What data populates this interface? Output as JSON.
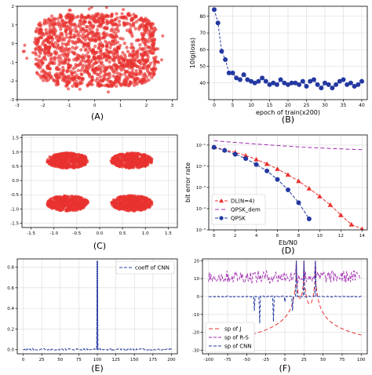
{
  "colors": {
    "red": "#e8322f",
    "blue": "#2338a0",
    "purple": "#a028b0",
    "grid": "#d9d9d9",
    "axis": "#000000"
  },
  "chart_data": [
    {
      "id": "A",
      "type": "scatter",
      "panel_label": "(A)",
      "xlim": [
        -3,
        3.2
      ],
      "ylim": [
        -3,
        2
      ],
      "xticks": [
        -3,
        -2,
        -1,
        0,
        1,
        2,
        3
      ],
      "yticks": [
        -3,
        -2,
        -1,
        0,
        1,
        2
      ],
      "grid": false,
      "series": [
        {
          "color": "#e8322f",
          "cloud": {
            "x": [
              -2.3,
              2.4
            ],
            "y": [
              -2.3,
              1.6
            ]
          },
          "gaps": [
            [
              1.3,
              0.4,
              0.5,
              0.6
            ],
            [
              -0.5,
              -0.5,
              0.2,
              0.2
            ]
          ]
        }
      ]
    },
    {
      "id": "B",
      "type": "line",
      "panel_label": "(B)",
      "xlabel": "epoch of train(x200)",
      "ylabel": "10lg(loss)",
      "xlim": [
        -1.5,
        41.5
      ],
      "ylim": [
        30,
        86
      ],
      "xticks": [
        0,
        5,
        10,
        15,
        20,
        25,
        30,
        35,
        40
      ],
      "yticks": [
        40,
        50,
        60,
        70,
        80
      ],
      "grid": true,
      "series": [
        {
          "color": "#2338a0",
          "marker": "circle",
          "x": [
            0,
            1,
            2,
            3,
            4,
            5,
            6,
            7,
            8,
            9,
            10,
            11,
            12,
            13,
            14,
            15,
            16,
            17,
            18,
            19,
            20,
            21,
            22,
            23,
            24,
            25,
            26,
            27,
            28,
            29,
            30,
            31,
            32,
            33,
            34,
            35,
            36,
            37,
            38,
            39,
            40
          ],
          "y": [
            84,
            76,
            59,
            54,
            46,
            46,
            43,
            42,
            45,
            42,
            41,
            40,
            41,
            43,
            41,
            39,
            40,
            39,
            42,
            40,
            39,
            40,
            40,
            39,
            41,
            38,
            41,
            42,
            39,
            37,
            40,
            39,
            37,
            39,
            41,
            42,
            39,
            40,
            38,
            39,
            41
          ]
        }
      ]
    },
    {
      "id": "C",
      "type": "scatter",
      "panel_label": "(C)",
      "xlim": [
        -1.7,
        1.7
      ],
      "ylim": [
        -1.65,
        1.6
      ],
      "xticks": [
        -1.5,
        -1.0,
        -0.5,
        0.0,
        0.5,
        1.0,
        1.5
      ],
      "yticks": [
        -1.5,
        -1.0,
        -0.5,
        0.0,
        0.5,
        1.0,
        1.5
      ],
      "grid": true,
      "series": [
        {
          "color": "#e8322f",
          "clusters": [
            {
              "cx": -0.7,
              "cy": 0.7
            },
            {
              "cx": 0.7,
              "cy": 0.7
            },
            {
              "cx": -0.7,
              "cy": -0.8
            },
            {
              "cx": 0.7,
              "cy": -0.8
            }
          ],
          "spread": [
            0.45,
            0.27
          ]
        }
      ]
    },
    {
      "id": "D",
      "type": "line",
      "panel_label": "(D)",
      "xlabel": "Eb/N0",
      "ylabel": "bit error rate",
      "yscale": "log",
      "xlim": [
        -0.5,
        14.5
      ],
      "ylim": [
        1e-05,
        0.3
      ],
      "xticks": [
        0,
        2,
        4,
        6,
        8,
        10,
        12,
        14
      ],
      "yticks": [
        1e-05,
        0.0001,
        0.001,
        0.01,
        0.1
      ],
      "ytick_labels": [
        "10⁻⁵",
        "10⁻⁴",
        "10⁻³",
        "10⁻²",
        "10⁻¹"
      ],
      "grid": true,
      "legend": "bottom-left",
      "series": [
        {
          "name": "DL(N=4)",
          "color": "#e8322f",
          "marker": "triangle",
          "dash": "4,2",
          "x": [
            0,
            1,
            2,
            3,
            4,
            5,
            6,
            7,
            8,
            9,
            10,
            11,
            12,
            13,
            14
          ],
          "y": [
            0.08,
            0.06,
            0.045,
            0.032,
            0.021,
            0.013,
            0.0075,
            0.004,
            0.002,
            0.0009,
            0.00038,
            0.00015,
            5e-05,
            1.8e-05,
            1.1e-05
          ]
        },
        {
          "name": "QPSK_dem",
          "color": "#a028b0",
          "marker": "none",
          "dash": "5,3",
          "x": [
            0,
            1,
            2,
            3,
            4,
            5,
            6,
            7,
            8,
            9,
            10,
            11,
            12,
            13,
            14
          ],
          "y": [
            0.16,
            0.145,
            0.133,
            0.122,
            0.112,
            0.103,
            0.095,
            0.088,
            0.082,
            0.077,
            0.073,
            0.069,
            0.066,
            0.063,
            0.061
          ]
        },
        {
          "name": "QPSK",
          "color": "#2338a0",
          "marker": "circle",
          "dash": "4,2",
          "x": [
            0,
            1,
            2,
            3,
            4,
            5,
            6,
            7,
            8,
            9
          ],
          "y": [
            0.079,
            0.056,
            0.037,
            0.023,
            0.012,
            0.006,
            0.0024,
            0.00077,
            0.00019,
            3.3e-05
          ]
        }
      ]
    },
    {
      "id": "E",
      "type": "line",
      "panel_label": "(E)",
      "xlim": [
        -8,
        208
      ],
      "ylim": [
        -0.04,
        0.88
      ],
      "xticks": [
        0,
        25,
        50,
        75,
        100,
        125,
        150,
        175,
        200
      ],
      "yticks": [
        0.0,
        0.2,
        0.4,
        0.6,
        0.8
      ],
      "grid": true,
      "legend": "top-right",
      "series": [
        {
          "name": "coeff of CNN",
          "color": "#2338a0",
          "dash": "4,2",
          "baseline": 0.003,
          "noise": 0.009,
          "peak_x": 100,
          "peak_y": 0.86
        }
      ]
    },
    {
      "id": "F",
      "type": "line",
      "panel_label": "(F)",
      "xlim": [
        -108,
        108
      ],
      "ylim": [
        -32,
        21
      ],
      "xticks": [
        -100,
        -75,
        -50,
        -25,
        0,
        25,
        50,
        75,
        100
      ],
      "yticks": [
        -30,
        -20,
        -10,
        0,
        10,
        20
      ],
      "grid": true,
      "legend": "bottom-left",
      "series": [
        {
          "name": "sp of J",
          "color": "#e8322f",
          "dash": "5,3",
          "floor": -29,
          "peaks": [
            15,
            25,
            40
          ]
        },
        {
          "name": "sp of R-S",
          "color": "#a028b0",
          "dash": "4,2",
          "level": 11,
          "noise": 3.5
        },
        {
          "name": "sp of CNN",
          "color": "#2338a0",
          "dash": "4,2",
          "level": 0,
          "dips": [
            [
              -40,
              -8
            ],
            [
              -33,
              -15
            ],
            [
              -15,
              -14
            ],
            [
              0,
              -3
            ],
            [
              10,
              -8
            ],
            [
              25,
              -12
            ],
            [
              40,
              -9
            ]
          ]
        }
      ]
    }
  ]
}
